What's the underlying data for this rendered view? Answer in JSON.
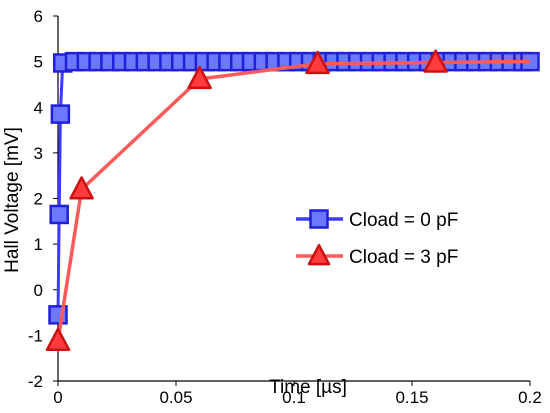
{
  "chart_data": {
    "type": "line",
    "title": "",
    "xlabel": "Time [µs]",
    "ylabel": "Hall Voltage [mV]",
    "xlim": [
      0,
      0.2
    ],
    "ylim": [
      -2,
      6
    ],
    "x_ticks": [
      0,
      0.05,
      0.1,
      0.15,
      0.2
    ],
    "x_tick_labels": [
      "0",
      "0.05",
      "0.1",
      "0.15",
      "0.2"
    ],
    "y_ticks": [
      -2,
      -1,
      0,
      1,
      2,
      3,
      4,
      5,
      6
    ],
    "y_tick_labels": [
      "-2",
      "-1",
      "0",
      "1",
      "2",
      "3",
      "4",
      "5",
      "6"
    ],
    "grid": false,
    "legend_position": "center-right",
    "series": [
      {
        "name": "Cload = 0 pF",
        "marker": "square",
        "line_color": "#3b3bff",
        "marker_fill": "#6b78ff",
        "marker_edge": "#2020d8",
        "points": [
          [
            0,
            -0.55
          ],
          [
            0.0005,
            1.65
          ],
          [
            0.001,
            3.85
          ],
          [
            0.002,
            4.97
          ],
          [
            0.007,
            5.0
          ],
          [
            0.012,
            5.0
          ],
          [
            0.017,
            5.0
          ],
          [
            0.022,
            5.0
          ],
          [
            0.027,
            5.0
          ],
          [
            0.032,
            5.0
          ],
          [
            0.037,
            5.0
          ],
          [
            0.042,
            5.0
          ],
          [
            0.047,
            5.0
          ],
          [
            0.052,
            5.0
          ],
          [
            0.057,
            5.0
          ],
          [
            0.062,
            5.0
          ],
          [
            0.067,
            5.0
          ],
          [
            0.072,
            5.0
          ],
          [
            0.077,
            5.0
          ],
          [
            0.082,
            5.0
          ],
          [
            0.087,
            5.0
          ],
          [
            0.092,
            5.0
          ],
          [
            0.097,
            5.0
          ],
          [
            0.102,
            5.0
          ],
          [
            0.107,
            5.0
          ],
          [
            0.112,
            5.0
          ],
          [
            0.117,
            5.0
          ],
          [
            0.122,
            5.0
          ],
          [
            0.127,
            5.0
          ],
          [
            0.132,
            5.0
          ],
          [
            0.137,
            5.0
          ],
          [
            0.142,
            5.0
          ],
          [
            0.147,
            5.0
          ],
          [
            0.152,
            5.0
          ],
          [
            0.157,
            5.0
          ],
          [
            0.162,
            5.0
          ],
          [
            0.167,
            5.0
          ],
          [
            0.172,
            5.0
          ],
          [
            0.177,
            5.0
          ],
          [
            0.182,
            5.0
          ],
          [
            0.187,
            5.0
          ],
          [
            0.192,
            5.0
          ],
          [
            0.197,
            5.0
          ],
          [
            0.2,
            5.0
          ]
        ]
      },
      {
        "name": "Cload = 3 pF",
        "marker": "triangle",
        "line_color": "#ff5a5a",
        "marker_fill": "#ff3b3b",
        "marker_edge": "#cc1010",
        "points": [
          [
            0,
            -1.12
          ],
          [
            0.01,
            2.2
          ],
          [
            0.06,
            4.62
          ],
          [
            0.11,
            4.95
          ],
          [
            0.16,
            4.98
          ],
          [
            0.2,
            5.0
          ]
        ],
        "marker_points": [
          [
            0,
            -1.12
          ],
          [
            0.01,
            2.2
          ],
          [
            0.06,
            4.62
          ],
          [
            0.11,
            4.95
          ],
          [
            0.16,
            4.98
          ]
        ]
      }
    ]
  }
}
